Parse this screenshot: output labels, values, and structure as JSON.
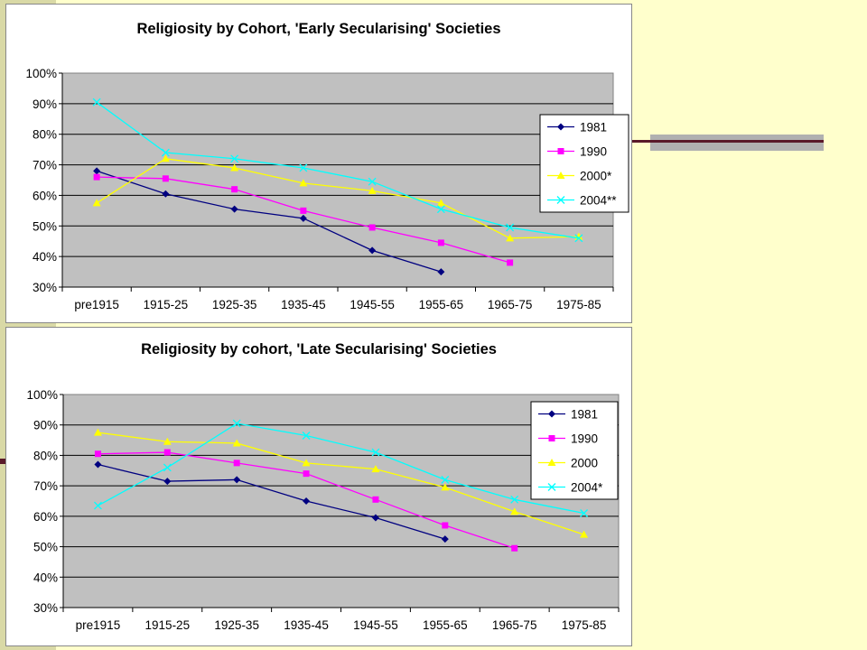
{
  "chart_data": [
    {
      "type": "line",
      "title": "Religiosity by Cohort, 'Early Secularising' Societies",
      "categories": [
        "pre1915",
        "1915-25",
        "1925-35",
        "1935-45",
        "1945-55",
        "1955-65",
        "1965-75",
        "1975-85"
      ],
      "ylim": [
        0.3,
        1.0
      ],
      "yticks": [
        "30%",
        "40%",
        "50%",
        "60%",
        "70%",
        "80%",
        "90%",
        "100%"
      ],
      "grid": true,
      "legend_position": "right",
      "series": [
        {
          "name": "1981",
          "color": "#000080",
          "marker": "diamond",
          "values": [
            0.68,
            0.605,
            0.555,
            0.525,
            0.42,
            0.35,
            null,
            null
          ]
        },
        {
          "name": "1990",
          "color": "#ff00ff",
          "marker": "square",
          "values": [
            0.66,
            0.655,
            0.62,
            0.55,
            0.495,
            0.445,
            0.38,
            null
          ]
        },
        {
          "name": "2000*",
          "color": "#ffff00",
          "marker": "triangle",
          "values": [
            0.575,
            0.72,
            0.69,
            0.64,
            0.615,
            0.575,
            0.46,
            0.465
          ]
        },
        {
          "name": "2004**",
          "color": "#00ffff",
          "marker": "x",
          "values": [
            0.905,
            0.74,
            0.72,
            0.69,
            0.645,
            0.555,
            0.495,
            0.46
          ]
        }
      ]
    },
    {
      "type": "line",
      "title": "Religiosity by cohort, 'Late Secularising' Societies",
      "categories": [
        "pre1915",
        "1915-25",
        "1925-35",
        "1935-45",
        "1945-55",
        "1955-65",
        "1965-75",
        "1975-85"
      ],
      "ylim": [
        0.3,
        1.0
      ],
      "yticks": [
        "30%",
        "40%",
        "50%",
        "60%",
        "70%",
        "80%",
        "90%",
        "100%"
      ],
      "grid": true,
      "legend_position": "right",
      "series": [
        {
          "name": "1981",
          "color": "#000080",
          "marker": "diamond",
          "values": [
            0.77,
            0.715,
            0.72,
            0.65,
            0.595,
            0.525,
            null,
            null
          ]
        },
        {
          "name": "1990",
          "color": "#ff00ff",
          "marker": "square",
          "values": [
            0.805,
            0.81,
            0.775,
            0.74,
            0.655,
            0.57,
            0.495,
            null
          ]
        },
        {
          "name": "2000",
          "color": "#ffff00",
          "marker": "triangle",
          "values": [
            0.875,
            0.845,
            0.84,
            0.775,
            0.755,
            0.695,
            0.615,
            0.54
          ]
        },
        {
          "name": "2004*",
          "color": "#00ffff",
          "marker": "x",
          "values": [
            0.635,
            0.76,
            0.905,
            0.865,
            0.81,
            0.72,
            0.655,
            0.61
          ]
        }
      ]
    }
  ]
}
